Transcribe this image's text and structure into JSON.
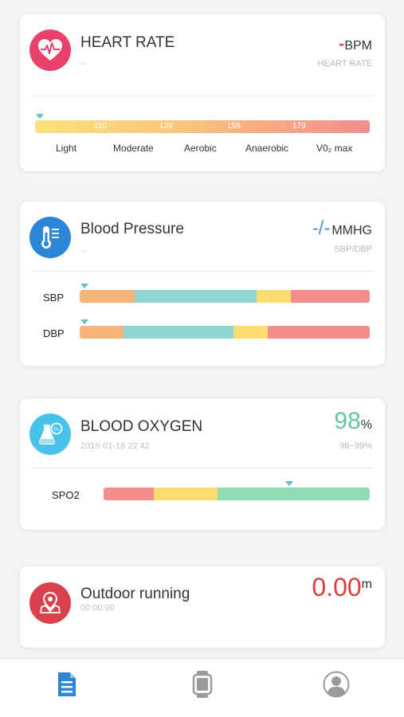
{
  "heart_rate": {
    "title": "HEART RATE",
    "subtitle": "--",
    "value": "-",
    "unit": "BPM",
    "value_label": "HEART RATE",
    "marker_position": 0,
    "ticks": [
      "110",
      "139",
      "159",
      "179"
    ],
    "zones": [
      "Light",
      "Moderate",
      "Aerobic",
      "Anaerobic",
      "V0₂ max"
    ]
  },
  "blood_pressure": {
    "title": "Blood Pressure",
    "subtitle": "--",
    "value": "-/-",
    "unit": "MMHG",
    "value_label": "SBP/DBP",
    "sbp_label": "SBP",
    "dbp_label": "DBP"
  },
  "blood_oxygen": {
    "title": "BLOOD OXYGEN",
    "timestamp": "2019-01-18 22:42",
    "value": "98",
    "unit": "%",
    "range": "96~99%",
    "spo2_label": "SPO2"
  },
  "outdoor_running": {
    "title": "Outdoor running",
    "duration": "00:00:00",
    "value": "0.00",
    "unit": "m"
  },
  "colors": {
    "heart_icon_bg": "#e8426b",
    "bp_icon_bg": "#2b86d8",
    "oxygen_icon_bg": "#49c2ea",
    "running_icon_bg": "#d9424c",
    "oxygen_value": "#5ec79b",
    "running_value": "#e33b3b",
    "bp_value": "#4a90d9",
    "hr_dash": "#e8426b",
    "active_tab": "#2b86d8",
    "inactive_tab": "#9a9a9a"
  },
  "tabs": [
    {
      "name": "report",
      "icon": "document-icon",
      "active": true
    },
    {
      "name": "device",
      "icon": "watch-icon",
      "active": false
    },
    {
      "name": "profile",
      "icon": "user-icon",
      "active": false
    }
  ]
}
